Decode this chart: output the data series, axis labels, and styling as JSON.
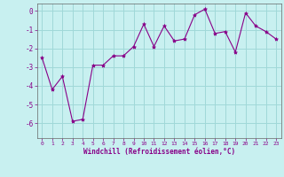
{
  "x": [
    0,
    1,
    2,
    3,
    4,
    5,
    6,
    7,
    8,
    9,
    10,
    11,
    12,
    13,
    14,
    15,
    16,
    17,
    18,
    19,
    20,
    21,
    22,
    23
  ],
  "y": [
    -2.5,
    -4.2,
    -3.5,
    -5.9,
    -5.8,
    -2.9,
    -2.9,
    -2.4,
    -2.4,
    -1.9,
    -0.7,
    -1.9,
    -0.8,
    -1.6,
    -1.5,
    -0.2,
    0.1,
    -1.2,
    -1.1,
    -2.2,
    -0.1,
    -0.8,
    -1.1,
    -1.5
  ],
  "line_color": "#880088",
  "marker": "*",
  "marker_size": 3,
  "bg_color": "#c8f0f0",
  "grid_color": "#a0d8d8",
  "xlabel": "Windchill (Refroidissement éolien,°C)",
  "xlabel_color": "#880088",
  "tick_color": "#880088",
  "axis_color": "#666666",
  "ylim": [
    -6.8,
    0.4
  ],
  "xlim": [
    -0.5,
    23.5
  ],
  "yticks": [
    0,
    -1,
    -2,
    -3,
    -4,
    -5,
    -6
  ],
  "xticks": [
    0,
    1,
    2,
    3,
    4,
    5,
    6,
    7,
    8,
    9,
    10,
    11,
    12,
    13,
    14,
    15,
    16,
    17,
    18,
    19,
    20,
    21,
    22,
    23
  ]
}
